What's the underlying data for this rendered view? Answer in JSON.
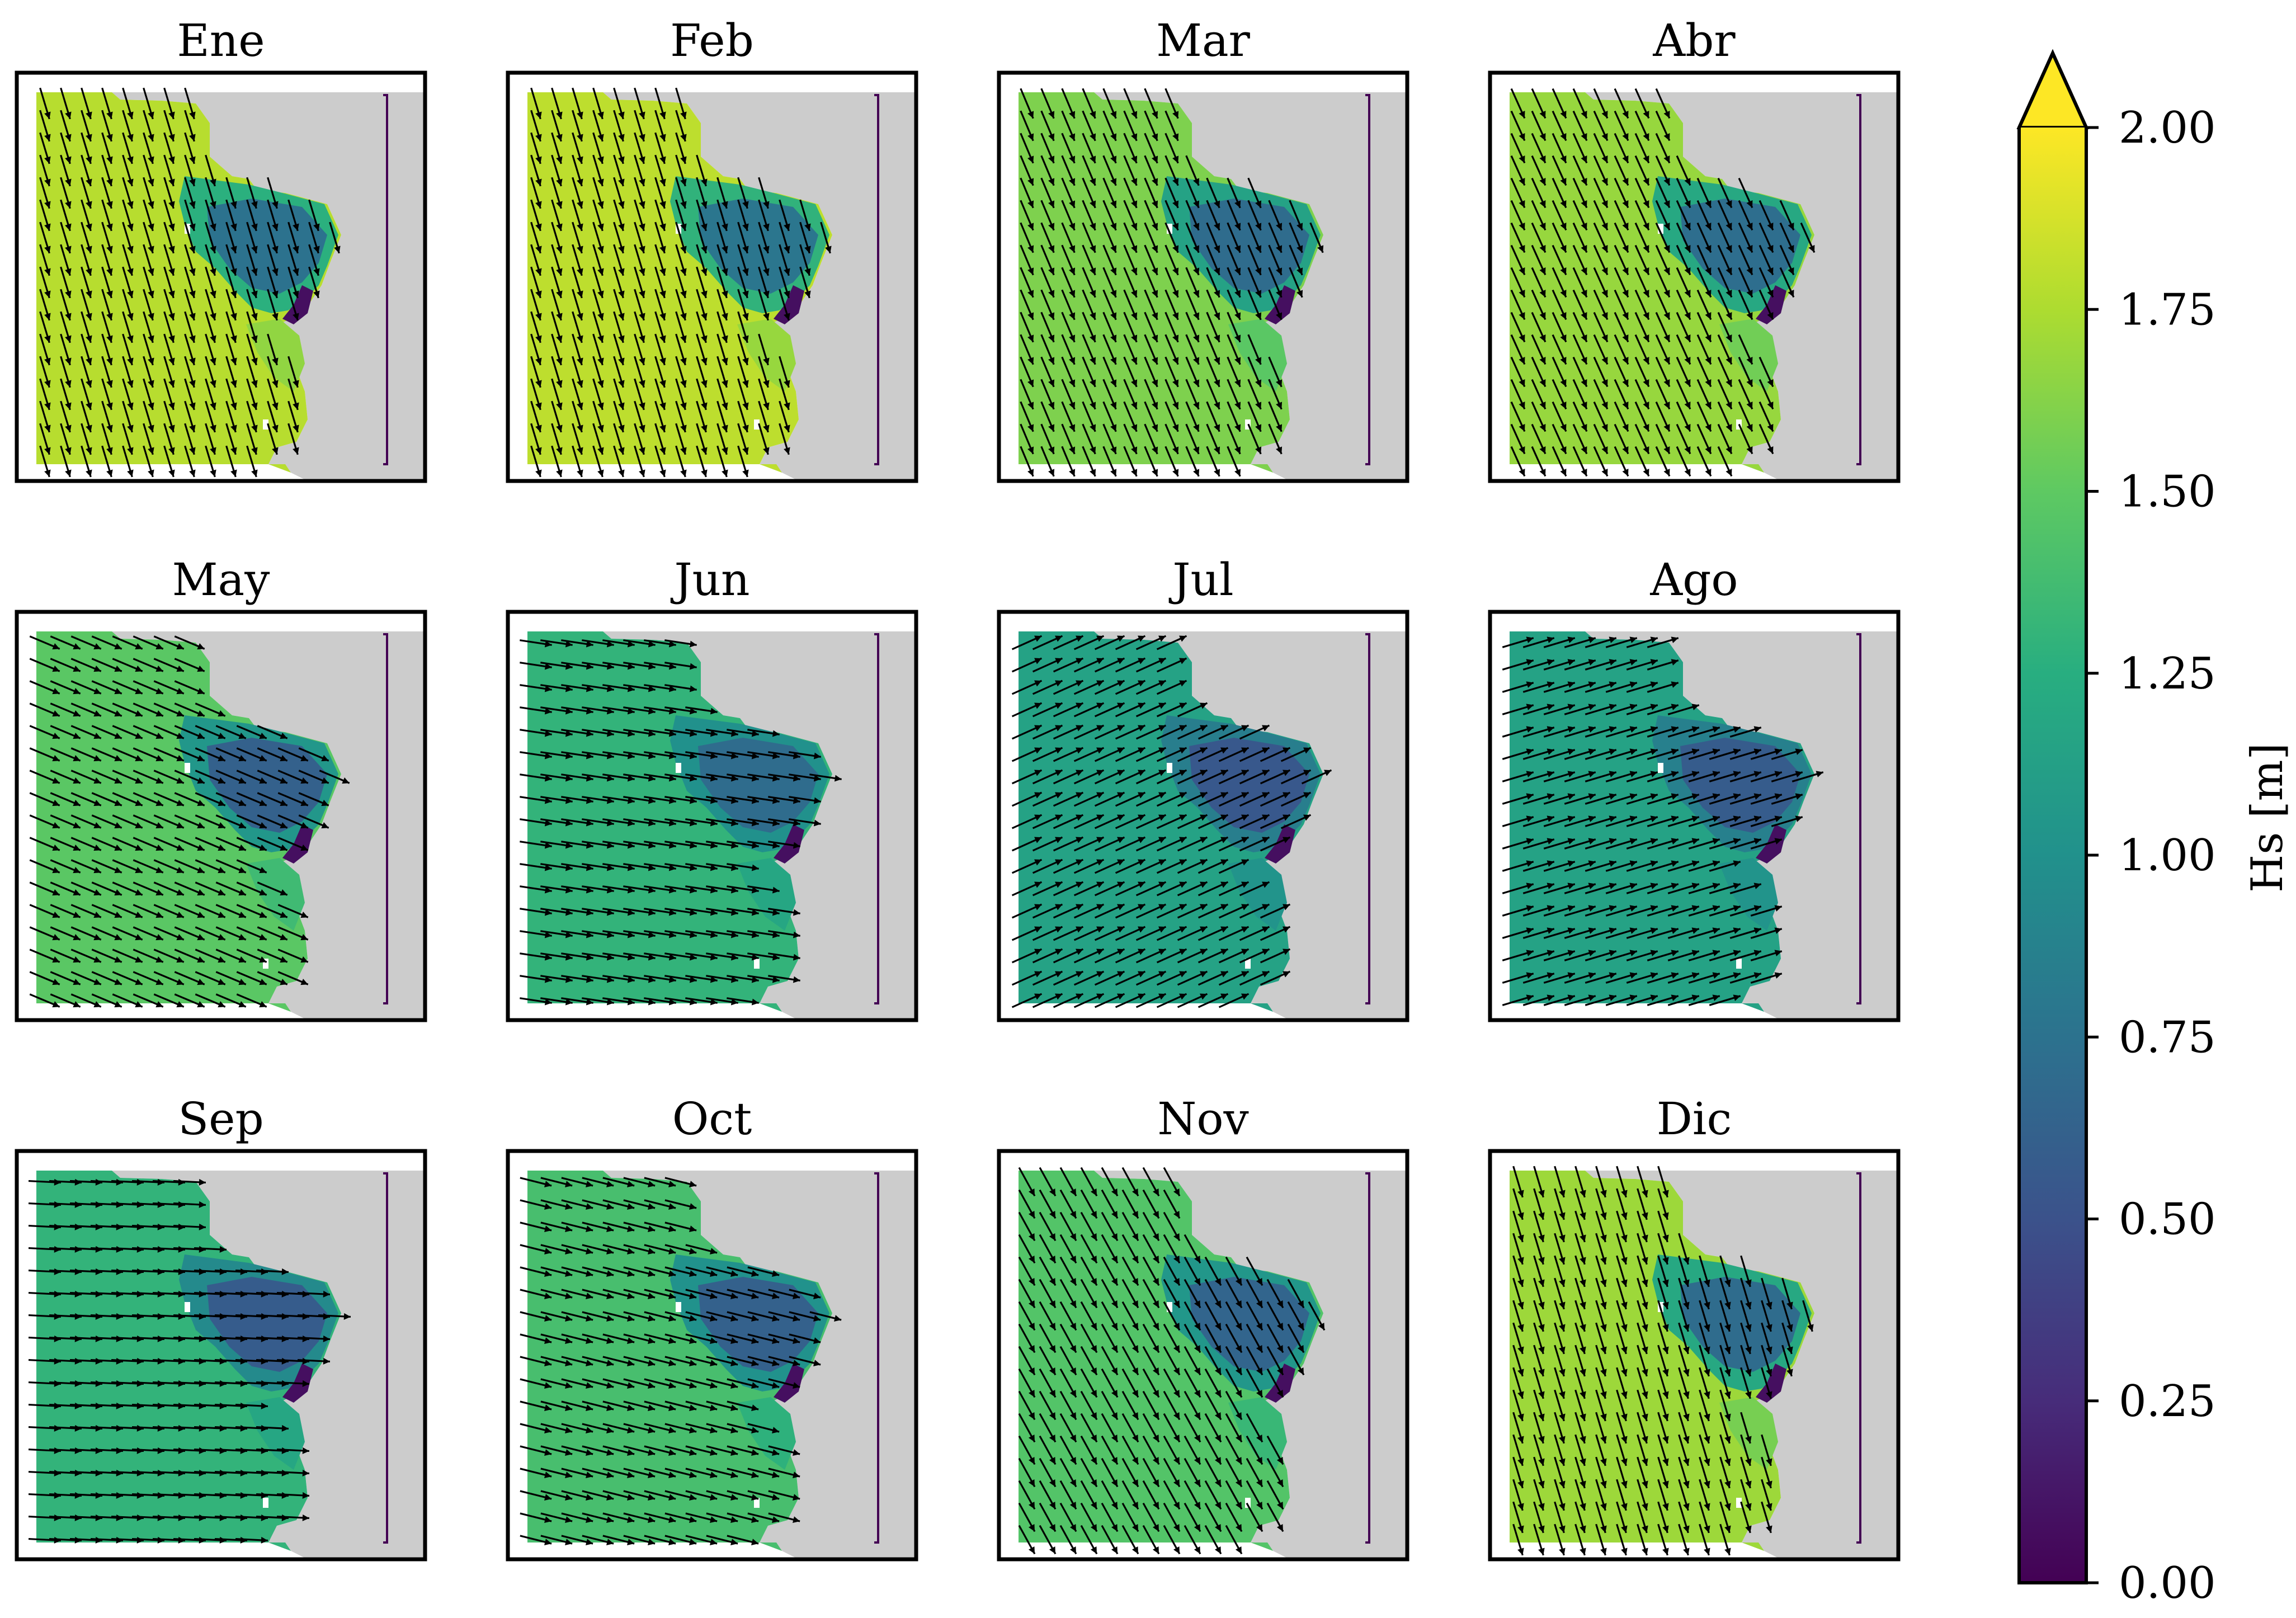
{
  "chart_data": {
    "type": "heatmap",
    "description": "Monthly mean significant wave height maps with mean wave direction arrows",
    "panels": [
      {
        "title": "Ene",
        "offshore_hs": 1.78,
        "bay_hs": 0.75,
        "dir_x": 0.3,
        "dir_y": 1.0
      },
      {
        "title": "Feb",
        "offshore_hs": 1.8,
        "bay_hs": 0.78,
        "dir_x": 0.3,
        "dir_y": 1.0
      },
      {
        "title": "Mar",
        "offshore_hs": 1.6,
        "bay_hs": 0.7,
        "dir_x": 0.42,
        "dir_y": 1.0
      },
      {
        "title": "Abr",
        "offshore_hs": 1.68,
        "bay_hs": 0.72,
        "dir_x": 0.45,
        "dir_y": 1.0
      },
      {
        "title": "May",
        "offshore_hs": 1.48,
        "bay_hs": 0.62,
        "dir_x": 1.0,
        "dir_y": 0.42
      },
      {
        "title": "Jun",
        "offshore_hs": 1.3,
        "bay_hs": 0.7,
        "dir_x": 1.0,
        "dir_y": 0.15
      },
      {
        "title": "Jul",
        "offshore_hs": 1.15,
        "bay_hs": 0.55,
        "dir_x": 1.0,
        "dir_y": -0.45
      },
      {
        "title": "Ago",
        "offshore_hs": 1.15,
        "bay_hs": 0.58,
        "dir_x": 1.0,
        "dir_y": -0.3
      },
      {
        "title": "Sep",
        "offshore_hs": 1.3,
        "bay_hs": 0.58,
        "dir_x": 1.0,
        "dir_y": 0.05
      },
      {
        "title": "Oct",
        "offshore_hs": 1.4,
        "bay_hs": 0.62,
        "dir_x": 1.0,
        "dir_y": 0.25
      },
      {
        "title": "Nov",
        "offshore_hs": 1.45,
        "bay_hs": 0.65,
        "dir_x": 0.55,
        "dir_y": 1.0
      },
      {
        "title": "Dic",
        "offshore_hs": 1.7,
        "bay_hs": 0.7,
        "dir_x": 0.3,
        "dir_y": 1.0
      }
    ],
    "colorbar": {
      "label": "Hs [m]",
      "colormap": "viridis",
      "range": [
        0.0,
        2.0
      ],
      "ticks": [
        "0.00",
        "0.25",
        "0.50",
        "0.75",
        "1.00",
        "1.25",
        "1.50",
        "1.75",
        "2.00"
      ],
      "extend": "max"
    },
    "land_color": "#cccccc"
  }
}
